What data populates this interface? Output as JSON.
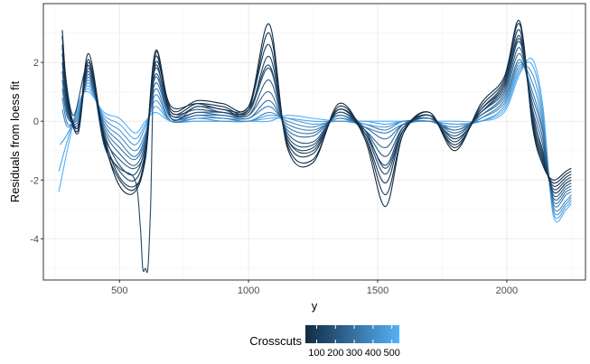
{
  "chart_data": {
    "type": "line",
    "xlabel": "y",
    "ylabel": "Residuals from loess fit",
    "xlim": [
      205,
      2305
    ],
    "ylim": [
      -5.4,
      4.0
    ],
    "x_ticks": [
      500,
      1000,
      1500,
      2000
    ],
    "y_ticks": [
      -4,
      -2,
      0,
      2
    ],
    "x_tick_labels": [
      "500",
      "1000",
      "1500",
      "2000"
    ],
    "y_tick_labels": [
      "-4",
      "-2",
      "0",
      "2"
    ],
    "grid": true,
    "legend_position": "bottom",
    "legend": {
      "title": "Crosscuts",
      "type": "colorbar",
      "breaks": [
        100,
        200,
        300,
        400,
        500
      ],
      "labels": [
        "100",
        "200",
        "300",
        "400",
        "500"
      ],
      "range": [
        40,
        540
      ],
      "low_color": "#132B43",
      "high_color": "#56B1F7"
    },
    "series": [
      {
        "crosscut": 40,
        "x": [
          278,
          300,
          340,
          380,
          440,
          500,
          560,
          600,
          640,
          700,
          800,
          900,
          1000,
          1080,
          1150,
          1250,
          1350,
          1450,
          1530,
          1600,
          1700,
          1800,
          1900,
          1990,
          2050,
          2100,
          2140,
          2180,
          2230,
          2250
        ],
        "y": [
          3.1,
          0.8,
          -0.2,
          2.3,
          -0.6,
          -2.2,
          -2.4,
          -1.2,
          2.4,
          0.4,
          0.7,
          0.6,
          0.5,
          3.3,
          -0.9,
          -1.4,
          0.6,
          -0.6,
          -2.9,
          -0.4,
          0.3,
          -1.0,
          0.6,
          1.5,
          3.4,
          -0.2,
          -1.5,
          -2.0,
          -1.7,
          -1.6
        ]
      },
      {
        "crosscut": 60,
        "x": [
          278,
          300,
          340,
          380,
          440,
          500,
          560,
          600,
          640,
          700,
          800,
          900,
          1000,
          1080,
          1150,
          1250,
          1350,
          1450,
          1530,
          1600,
          1700,
          1800,
          1900,
          1990,
          2050,
          2100,
          2140,
          2180,
          2230,
          2250
        ],
        "y": [
          2.9,
          0.6,
          -0.3,
          2.1,
          -0.7,
          -2.0,
          -2.3,
          -1.1,
          2.2,
          0.3,
          0.6,
          0.5,
          0.4,
          3.0,
          -0.8,
          -1.3,
          0.5,
          -0.5,
          -2.5,
          -0.4,
          0.3,
          -0.9,
          0.5,
          1.4,
          3.3,
          -0.1,
          -1.4,
          -2.1,
          -1.8,
          -1.7
        ]
      },
      {
        "crosscut": 90,
        "x": [
          278,
          300,
          340,
          380,
          440,
          500,
          560,
          600,
          640,
          700,
          800,
          900,
          1000,
          1080,
          1150,
          1250,
          1350,
          1450,
          1530,
          1600,
          1700,
          1800,
          1900,
          1990,
          2050,
          2100,
          2140,
          2180,
          2230,
          2250
        ],
        "y": [
          2.6,
          0.7,
          -0.4,
          2.0,
          -0.5,
          -1.9,
          -2.2,
          -1.3,
          2.0,
          0.5,
          0.6,
          0.4,
          0.5,
          2.6,
          -0.7,
          -1.1,
          0.4,
          -0.5,
          -2.1,
          -0.3,
          0.2,
          -0.8,
          0.4,
          1.3,
          3.1,
          0.0,
          -1.3,
          -2.2,
          -1.9,
          -1.8
        ]
      },
      {
        "crosscut": 130,
        "x": [
          278,
          300,
          340,
          380,
          440,
          500,
          560,
          600,
          640,
          700,
          800,
          900,
          1000,
          1080,
          1150,
          1250,
          1350,
          1450,
          1530,
          1600,
          1700,
          1800,
          1900,
          1990,
          2050,
          2100,
          2140,
          2180,
          2230,
          2250
        ],
        "y": [
          2.3,
          0.5,
          -0.2,
          1.9,
          -0.6,
          -1.7,
          -2.0,
          -1.0,
          1.9,
          0.2,
          0.5,
          0.4,
          0.3,
          2.2,
          -0.6,
          -1.0,
          0.4,
          -0.4,
          -1.8,
          -0.3,
          0.2,
          -0.7,
          0.4,
          1.2,
          2.9,
          0.1,
          -1.2,
          -2.3,
          -2.0,
          -1.9
        ]
      },
      {
        "crosscut": 170,
        "x": [
          278,
          300,
          340,
          380,
          440,
          500,
          560,
          600,
          640,
          700,
          800,
          900,
          1000,
          1080,
          1150,
          1250,
          1350,
          1450,
          1530,
          1600,
          1700,
          1800,
          1900,
          1990,
          2050,
          2100,
          2140,
          2180,
          2230,
          2250
        ],
        "y": [
          2.0,
          0.4,
          -0.3,
          1.8,
          -0.4,
          -1.5,
          -1.8,
          -0.8,
          1.8,
          0.3,
          0.4,
          0.3,
          0.3,
          1.8,
          -0.5,
          -0.8,
          0.3,
          -0.4,
          -1.5,
          -0.2,
          0.2,
          -0.6,
          0.3,
          1.1,
          2.7,
          0.2,
          -1.0,
          -2.4,
          -2.1,
          -2.0
        ]
      },
      {
        "crosscut": 210,
        "x": [
          278,
          300,
          340,
          380,
          440,
          500,
          560,
          600,
          640,
          700,
          800,
          900,
          1000,
          1080,
          1150,
          1250,
          1350,
          1450,
          1530,
          1600,
          1700,
          1800,
          1900,
          1990,
          2050,
          2100,
          2140,
          2180,
          2230,
          2250
        ],
        "y": [
          1.7,
          0.3,
          -0.1,
          1.7,
          -0.5,
          -1.3,
          -1.6,
          -0.9,
          1.6,
          0.2,
          0.3,
          0.3,
          0.2,
          1.4,
          -0.4,
          -0.7,
          0.3,
          -0.3,
          -1.2,
          -0.2,
          0.1,
          -0.5,
          0.3,
          1.0,
          2.5,
          0.4,
          -0.8,
          -2.5,
          -2.2,
          -2.1
        ]
      },
      {
        "crosscut": 260,
        "x": [
          278,
          300,
          340,
          380,
          440,
          500,
          560,
          600,
          640,
          700,
          800,
          900,
          1000,
          1080,
          1150,
          1250,
          1350,
          1450,
          1530,
          1600,
          1700,
          1800,
          1900,
          1990,
          2050,
          2100,
          2140,
          2180,
          2230,
          2250
        ],
        "y": [
          1.4,
          0.2,
          0.0,
          1.6,
          -0.3,
          -1.1,
          -1.5,
          -0.7,
          1.5,
          0.1,
          0.3,
          0.2,
          0.2,
          1.0,
          -0.3,
          -0.5,
          0.2,
          -0.3,
          -0.9,
          -0.1,
          0.1,
          -0.4,
          0.2,
          0.9,
          2.3,
          0.6,
          -0.6,
          -2.6,
          -2.3,
          -2.2
        ]
      },
      {
        "crosscut": 310,
        "x": [
          278,
          300,
          340,
          380,
          440,
          500,
          560,
          600,
          640,
          700,
          800,
          900,
          1000,
          1080,
          1150,
          1250,
          1350,
          1450,
          1530,
          1600,
          1700,
          1800,
          1900,
          1990,
          2050,
          2100,
          2140,
          2180,
          2230,
          2250
        ],
        "y": [
          1.1,
          0.1,
          0.1,
          1.5,
          -0.2,
          -0.9,
          -1.3,
          -0.6,
          1.3,
          0.1,
          0.2,
          0.2,
          0.1,
          0.7,
          -0.2,
          -0.4,
          0.2,
          -0.2,
          -0.6,
          -0.1,
          0.1,
          -0.3,
          0.2,
          0.8,
          2.1,
          0.8,
          -0.4,
          -2.7,
          -2.4,
          -2.3
        ]
      },
      {
        "crosscut": 350,
        "x": [
          278,
          300,
          340,
          380,
          440,
          500,
          560,
          600,
          640,
          700,
          800,
          900,
          1000,
          1080,
          1150,
          1250,
          1350,
          1450,
          1530,
          1600,
          1700,
          1800,
          1900,
          1990,
          2050,
          2100,
          2140,
          2180,
          2230,
          2250
        ],
        "y": [
          0.8,
          -0.1,
          0.2,
          1.4,
          -0.1,
          -0.7,
          -1.2,
          -0.5,
          1.1,
          0.0,
          0.2,
          0.1,
          0.1,
          0.5,
          -0.1,
          -0.3,
          0.1,
          -0.2,
          -0.4,
          -0.1,
          0.0,
          -0.3,
          0.1,
          0.7,
          2.0,
          1.0,
          -0.3,
          -2.8,
          -2.5,
          -2.4
        ]
      },
      {
        "crosscut": 400,
        "x": [
          278,
          300,
          340,
          380,
          440,
          500,
          560,
          600,
          640,
          700,
          800,
          900,
          1000,
          1080,
          1150,
          1250,
          1350,
          1450,
          1530,
          1600,
          1700,
          1800,
          1900,
          1990,
          2050,
          2100,
          2140,
          2180,
          2230,
          2250
        ],
        "y": [
          0.4,
          -0.2,
          0.3,
          1.3,
          0.0,
          -0.5,
          -1.0,
          -0.4,
          0.9,
          0.0,
          0.1,
          0.1,
          0.0,
          0.3,
          0.0,
          -0.2,
          0.1,
          -0.1,
          -0.3,
          0.0,
          0.0,
          -0.2,
          0.1,
          0.6,
          1.9,
          1.3,
          -0.1,
          -2.9,
          -2.7,
          -2.5
        ]
      },
      {
        "crosscut": 450,
        "x": [
          270,
          300,
          340,
          380,
          440,
          500,
          560,
          600,
          640,
          700,
          800,
          900,
          1000,
          1080,
          1150,
          1250,
          1350,
          1450,
          1530,
          1600,
          1700,
          1800,
          1900,
          1990,
          2050,
          2100,
          2140,
          2180,
          2230,
          2250
        ],
        "y": [
          -0.8,
          -0.4,
          0.4,
          1.2,
          0.1,
          -0.3,
          -0.8,
          -0.2,
          0.7,
          0.0,
          0.1,
          0.0,
          0.0,
          0.2,
          0.1,
          -0.1,
          0.0,
          -0.1,
          -0.2,
          0.0,
          0.0,
          -0.1,
          0.0,
          0.5,
          1.8,
          1.6,
          0.1,
          -3.0,
          -2.8,
          -2.6
        ]
      },
      {
        "crosscut": 500,
        "x": [
          265,
          300,
          340,
          380,
          440,
          500,
          560,
          600,
          640,
          700,
          800,
          900,
          1000,
          1080,
          1150,
          1250,
          1350,
          1450,
          1530,
          1600,
          1700,
          1800,
          1900,
          1990,
          2050,
          2100,
          2140,
          2180,
          2230,
          2250
        ],
        "y": [
          -1.7,
          -0.6,
          0.5,
          1.1,
          0.2,
          -0.1,
          -0.6,
          -0.1,
          0.5,
          0.0,
          0.0,
          0.0,
          0.0,
          0.1,
          0.1,
          0.0,
          0.0,
          0.0,
          -0.1,
          0.0,
          0.0,
          -0.1,
          0.0,
          0.4,
          1.7,
          1.9,
          0.3,
          -3.1,
          -2.9,
          -2.7
        ]
      },
      {
        "crosscut": 540,
        "x": [
          265,
          300,
          340,
          380,
          440,
          500,
          560,
          600,
          640,
          700,
          800,
          900,
          1000,
          1080,
          1150,
          1250,
          1350,
          1450,
          1530,
          1600,
          1700,
          1800,
          1900,
          1990,
          2050,
          2100,
          2140,
          2180,
          2230,
          2250
        ],
        "y": [
          -2.4,
          -0.9,
          0.6,
          1.0,
          0.3,
          0.1,
          -0.4,
          0.0,
          0.3,
          0.0,
          0.0,
          0.0,
          0.0,
          0.0,
          0.2,
          0.1,
          0.0,
          0.0,
          0.0,
          0.0,
          0.0,
          0.0,
          0.0,
          0.3,
          1.6,
          2.1,
          0.5,
          -3.2,
          -3.0,
          -2.8
        ]
      },
      {
        "crosscut": 150,
        "x": [
          278,
          320,
          380,
          440,
          500,
          560,
          580,
          590,
          600,
          610,
          620,
          640,
          700,
          800,
          900,
          1000,
          1080,
          1150,
          1250,
          1350,
          1450,
          1530,
          1600,
          1700,
          1800,
          1900,
          1990,
          2050,
          2100,
          2140,
          2180,
          2230,
          2250
        ],
        "y": [
          2.5,
          0.2,
          1.9,
          -0.8,
          -1.6,
          -2.0,
          -3.5,
          -5.0,
          -5.0,
          -5.0,
          -3.0,
          2.3,
          0.1,
          0.5,
          0.3,
          0.4,
          1.9,
          -0.6,
          -0.9,
          0.4,
          -0.3,
          -1.6,
          -0.3,
          0.2,
          -0.6,
          0.3,
          1.2,
          2.8,
          0.3,
          -1.1,
          -2.4,
          -2.1,
          -2.0
        ]
      }
    ]
  }
}
